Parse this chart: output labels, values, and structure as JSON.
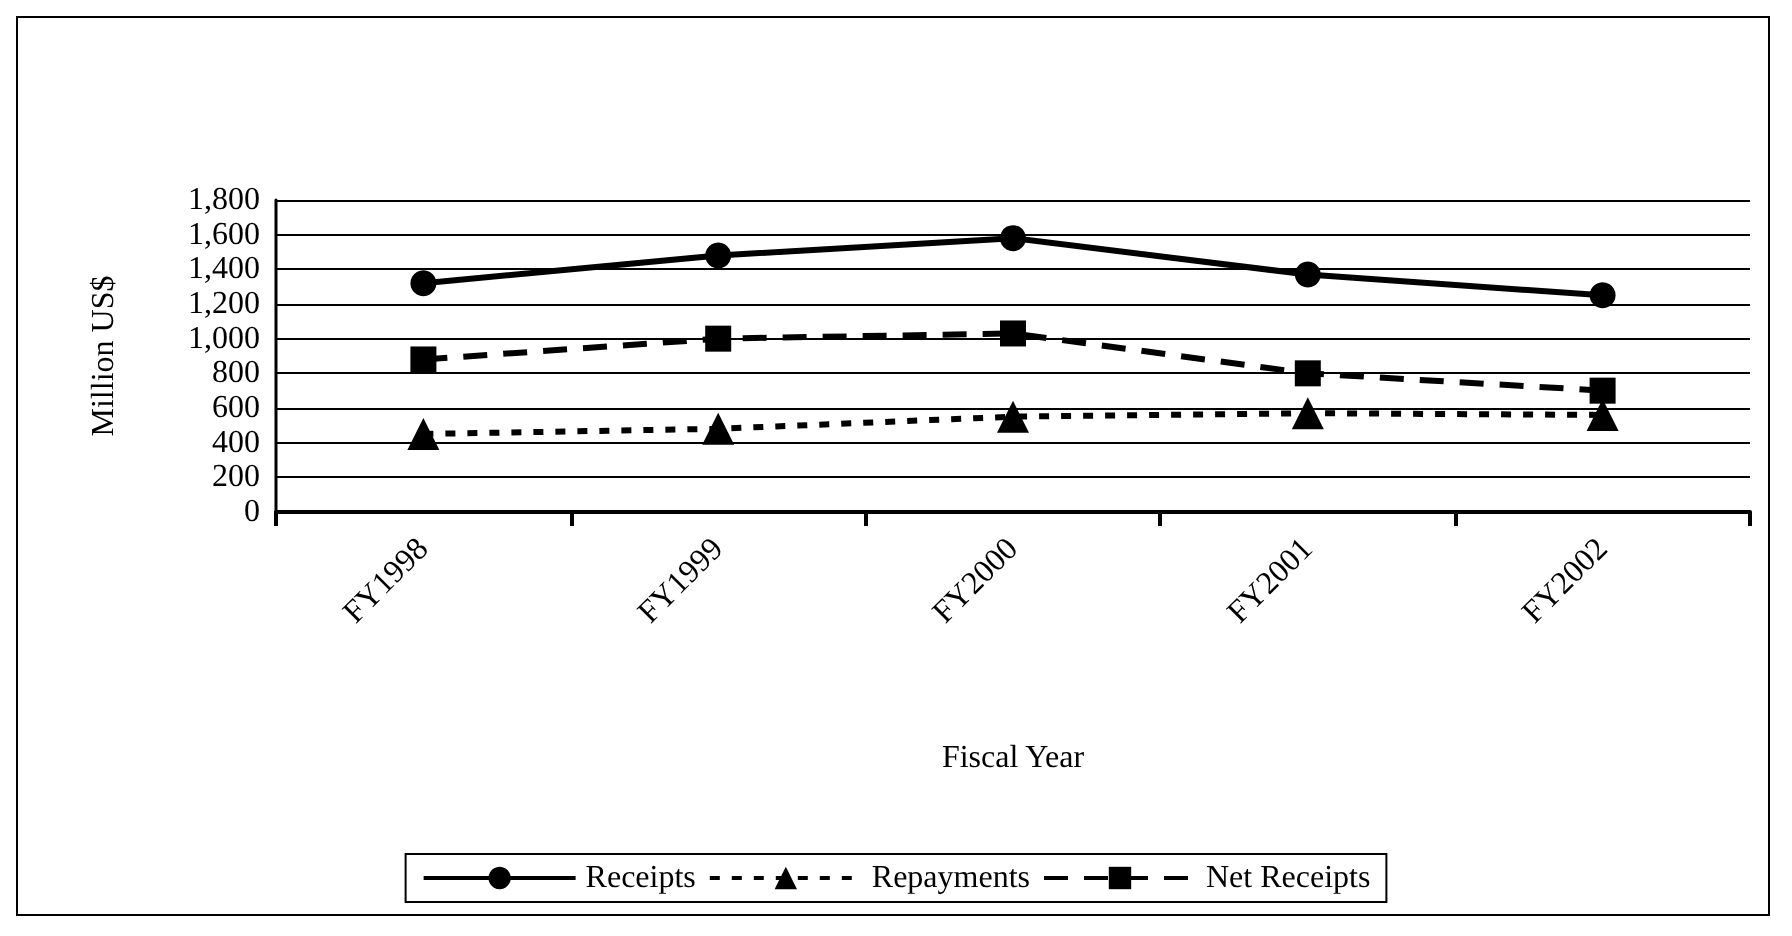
{
  "chart_data": {
    "type": "line",
    "xlabel": "Fiscal Year",
    "ylabel": "Million US$",
    "categories": [
      "FY1998",
      "FY1999",
      "FY2000",
      "FY2001",
      "FY2002"
    ],
    "series": [
      {
        "name": "Receipts",
        "color": "#000000",
        "values": [
          1320,
          1480,
          1580,
          1370,
          1250
        ],
        "marker": "circle",
        "line_style": "solid"
      },
      {
        "name": "Repayments",
        "color": "#000000",
        "values": [
          450,
          480,
          550,
          570,
          560
        ],
        "marker": "triangle",
        "line_style": "dotted"
      },
      {
        "name": "Net Receipts",
        "color": "#000000",
        "values": [
          880,
          1000,
          1030,
          800,
          700
        ],
        "marker": "square",
        "line_style": "dashed"
      }
    ],
    "ylim": [
      0,
      1800
    ],
    "yticks": [
      0,
      200,
      400,
      600,
      800,
      {
        "value": 1000,
        "label": "1,000"
      },
      {
        "value": 1200,
        "label": "1,200"
      },
      {
        "value": 1400,
        "label": "1,400"
      },
      {
        "value": 1600,
        "label": "1,600"
      },
      {
        "value": 1800,
        "label": "1,800"
      }
    ],
    "grid": "y",
    "legend": "bottom"
  }
}
